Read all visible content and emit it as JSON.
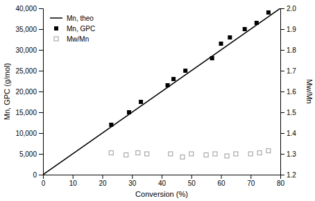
{
  "chart_data": {
    "type": "scatter",
    "xlabel": "Conversion (%)",
    "ylabel": "Mn, GPC (g/mol)",
    "y2label": "Mw/Mn",
    "xlim": [
      0,
      80
    ],
    "ylim": [
      0,
      40000
    ],
    "y2lim": [
      1.2,
      2.0
    ],
    "xticks": [
      0,
      10,
      20,
      30,
      40,
      50,
      60,
      70,
      80
    ],
    "yticks": [
      0,
      {
        "value": 5000,
        "label": "5,000"
      },
      {
        "value": 10000,
        "label": "10,000"
      },
      {
        "value": 15000,
        "label": "15,000"
      },
      {
        "value": 20000,
        "label": "20,000"
      },
      {
        "value": 25000,
        "label": "25,000"
      },
      {
        "value": 30000,
        "label": "30,000"
      },
      {
        "value": 35000,
        "label": "35,000"
      },
      {
        "value": 40000,
        "label": "40,000"
      }
    ],
    "y2ticks": [
      1.2,
      1.3,
      1.4,
      1.5,
      1.6,
      1.7,
      1.8,
      1.9,
      {
        "value": 2.0,
        "label": "2.0"
      }
    ],
    "grid": false,
    "legend": "upper left",
    "series": [
      {
        "name": "Mn, theo",
        "type": "line",
        "color": "#000000",
        "x": [
          0,
          80
        ],
        "values": [
          0,
          40000
        ]
      },
      {
        "name": "Mn, GPC",
        "type": "scatter",
        "marker": "square",
        "color": "#000000",
        "x": [
          23,
          29,
          33,
          42,
          44,
          48,
          57,
          60,
          63,
          68,
          72,
          76
        ],
        "values": [
          12000,
          15000,
          17500,
          21500,
          23000,
          25000,
          28000,
          31500,
          33000,
          35000,
          36500,
          39000
        ]
      },
      {
        "name": "Mw/Mn",
        "type": "scatter",
        "marker": "square-open",
        "color": "#aaaaaa",
        "axis": "y2",
        "x": [
          23,
          28,
          32,
          35,
          43,
          47,
          50,
          55,
          58,
          62,
          65,
          70,
          73,
          76
        ],
        "values": [
          1.305,
          1.295,
          1.305,
          1.3,
          1.3,
          1.285,
          1.3,
          1.295,
          1.3,
          1.29,
          1.3,
          1.3,
          1.305,
          1.315
        ]
      }
    ]
  }
}
